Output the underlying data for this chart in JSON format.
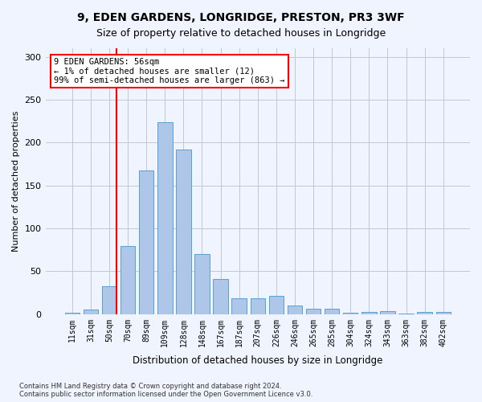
{
  "title1": "9, EDEN GARDENS, LONGRIDGE, PRESTON, PR3 3WF",
  "title2": "Size of property relative to detached houses in Longridge",
  "xlabel": "Distribution of detached houses by size in Longridge",
  "ylabel": "Number of detached properties",
  "categories": [
    "11sqm",
    "31sqm",
    "50sqm",
    "70sqm",
    "89sqm",
    "109sqm",
    "128sqm",
    "148sqm",
    "167sqm",
    "187sqm",
    "207sqm",
    "226sqm",
    "246sqm",
    "265sqm",
    "285sqm",
    "304sqm",
    "324sqm",
    "343sqm",
    "363sqm",
    "382sqm",
    "402sqm"
  ],
  "values": [
    2,
    5,
    33,
    79,
    168,
    224,
    192,
    70,
    41,
    19,
    19,
    21,
    10,
    6,
    6,
    2,
    3,
    4,
    1,
    3,
    3
  ],
  "bar_color": "#aec6e8",
  "bar_edge_color": "#5a9fd4",
  "annotation_bar_index": 2,
  "vline_x": 2,
  "annotation_text": "9 EDEN GARDENS: 56sqm\n← 1% of detached houses are smaller (12)\n99% of semi-detached houses are larger (863) →",
  "annotation_box_color": "white",
  "annotation_box_edge_color": "red",
  "vline_color": "red",
  "ylim": [
    0,
    310
  ],
  "yticks": [
    0,
    50,
    100,
    150,
    200,
    250,
    300
  ],
  "footnote": "Contains HM Land Registry data © Crown copyright and database right 2024.\nContains public sector information licensed under the Open Government Licence v3.0.",
  "bg_color": "#f0f4ff",
  "grid_color": "#c0c8d8"
}
